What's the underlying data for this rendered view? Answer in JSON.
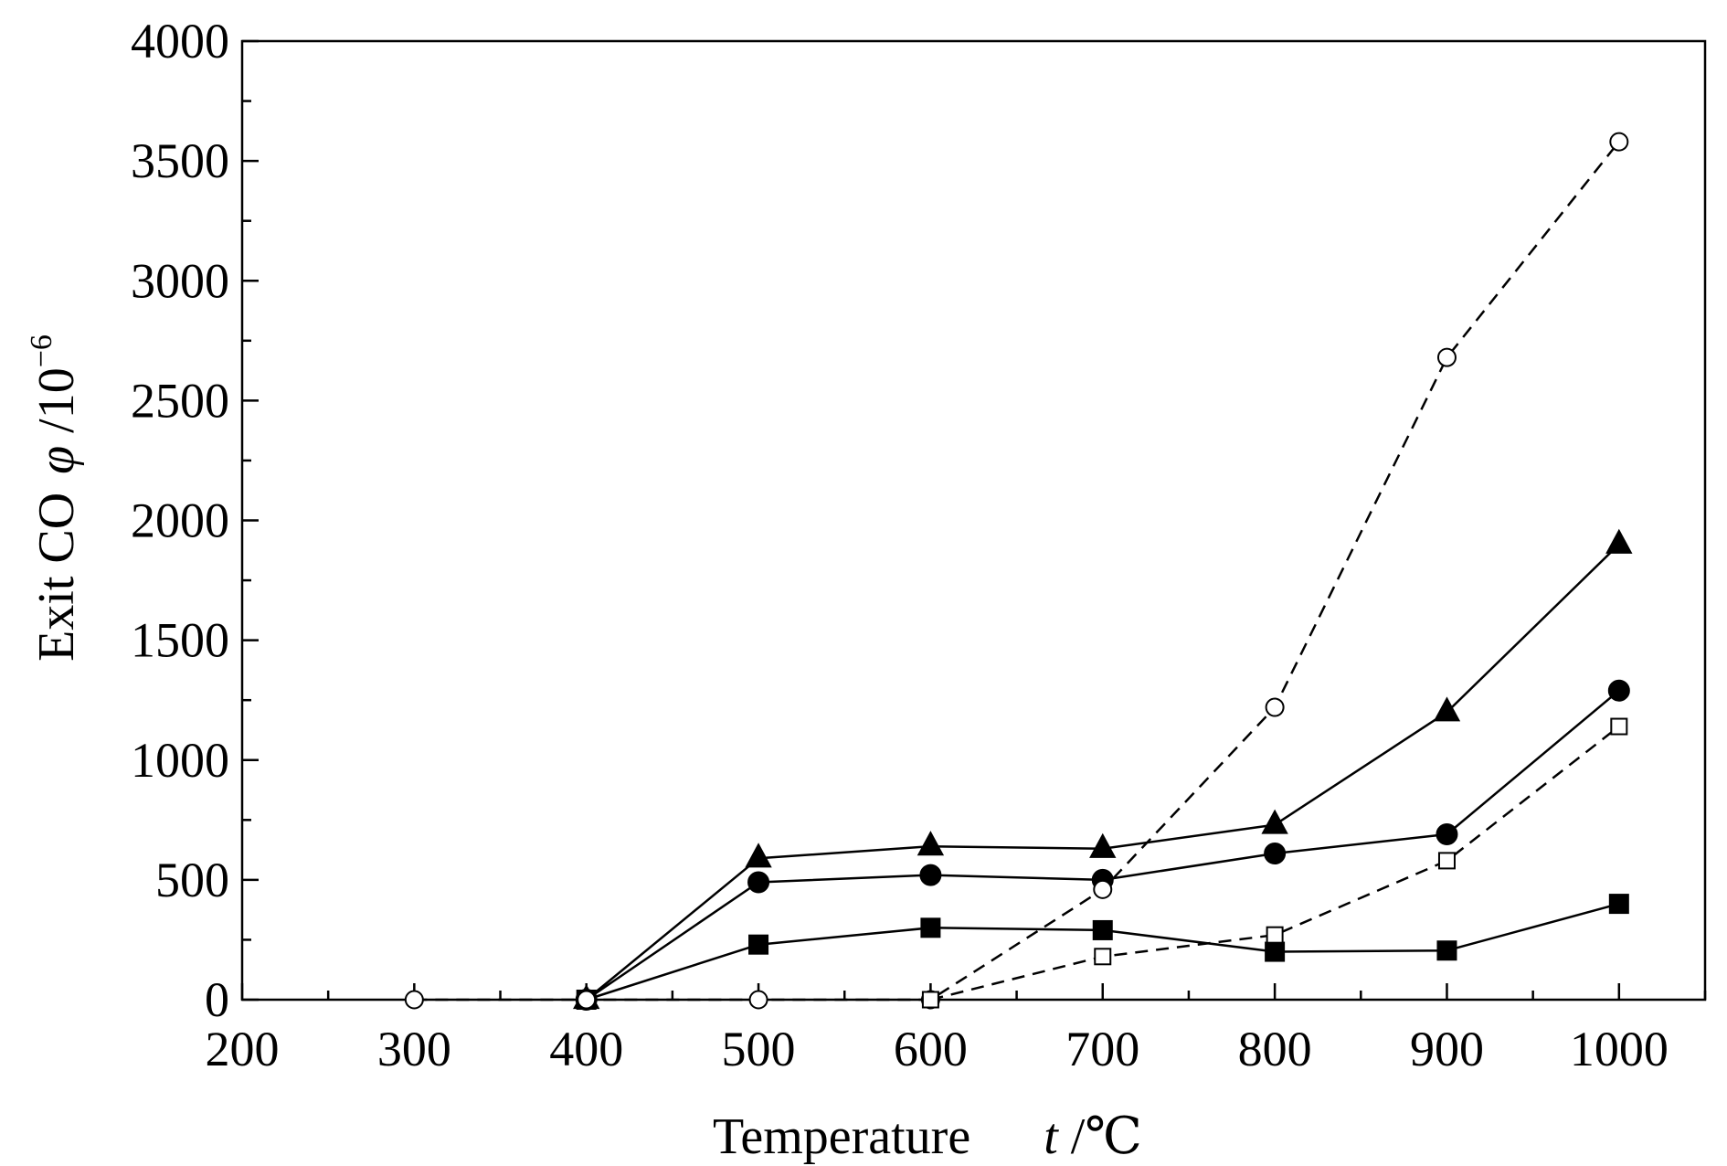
{
  "chart_data": {
    "type": "line",
    "xlabel": {
      "main": "Temperature",
      "var": "t",
      "unit": " /℃"
    },
    "ylabel": {
      "main": "Exit CO",
      "var": "φ",
      "unit": " /10",
      "exp": "−6"
    },
    "xlim": [
      200,
      1050
    ],
    "ylim": [
      0,
      4000
    ],
    "x_ticks": [
      200,
      300,
      400,
      500,
      600,
      700,
      800,
      900,
      1000
    ],
    "y_ticks": [
      0,
      500,
      1000,
      1500,
      2000,
      2500,
      3000,
      3500,
      4000
    ],
    "x_minor_step": 50,
    "y_minor_step": 250,
    "grid": false,
    "series": [
      {
        "marker": "filled-triangle",
        "line": "solid",
        "x": [
          400,
          500,
          600,
          700,
          800,
          900,
          1000
        ],
        "y": [
          0,
          590,
          640,
          630,
          730,
          1200,
          1900
        ]
      },
      {
        "marker": "filled-circle",
        "line": "solid",
        "x": [
          400,
          500,
          600,
          700,
          800,
          900,
          1000
        ],
        "y": [
          0,
          490,
          520,
          500,
          610,
          690,
          1290
        ]
      },
      {
        "marker": "filled-square",
        "line": "solid",
        "x": [
          400,
          500,
          600,
          700,
          800,
          900,
          1000
        ],
        "y": [
          0,
          230,
          300,
          290,
          200,
          205,
          400
        ]
      },
      {
        "marker": "open-circle",
        "line": "dashed",
        "x": [
          300,
          400,
          500,
          600,
          700,
          800,
          900,
          1000
        ],
        "y": [
          0,
          0,
          0,
          0,
          460,
          1220,
          2680,
          3580
        ]
      },
      {
        "marker": "open-square",
        "line": "dashed",
        "x": [
          600,
          700,
          800,
          900,
          1000
        ],
        "y": [
          0,
          180,
          270,
          580,
          1140
        ]
      }
    ]
  }
}
